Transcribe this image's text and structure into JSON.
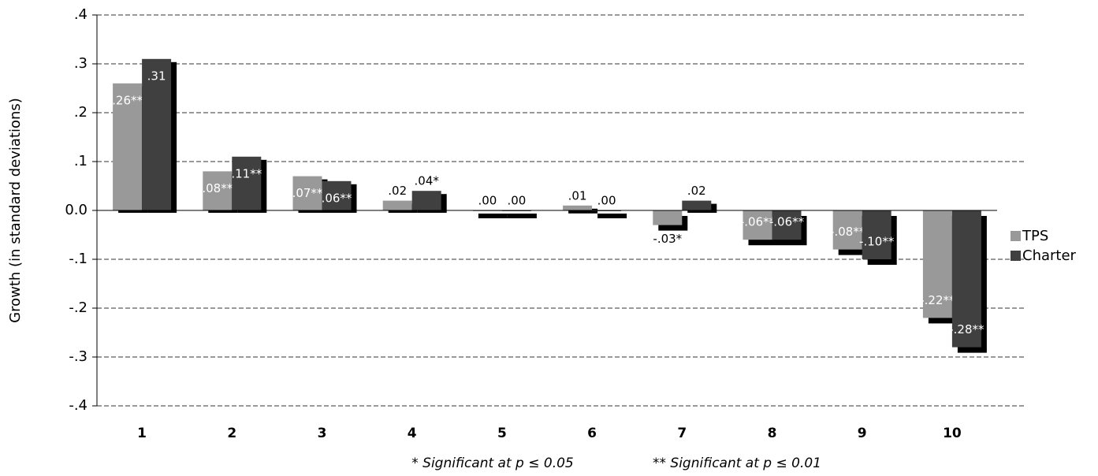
{
  "chart_data": {
    "type": "bar",
    "y_label": "Growth (in standard deviations)",
    "categories": [
      "1",
      "2",
      "3",
      "4",
      "5",
      "6",
      "7",
      "8",
      "9",
      "10"
    ],
    "series": [
      {
        "name": "TPS",
        "color": "#999999",
        "values": [
          0.26,
          0.08,
          0.07,
          0.02,
          0.0,
          0.01,
          -0.03,
          -0.06,
          -0.08,
          -0.22
        ],
        "value_labels": [
          ".26**",
          ".08**",
          ".07**",
          ".02",
          ".00",
          ".01",
          "-.03*",
          "-.06**",
          "-.08**",
          "-.22**"
        ]
      },
      {
        "name": "Charter",
        "color": "#404040",
        "values": [
          0.31,
          0.11,
          0.06,
          0.04,
          0.0,
          0.0,
          0.02,
          -0.06,
          -0.1,
          -0.28
        ],
        "value_labels": [
          ".31",
          ".11**",
          ".06**",
          ".04*",
          ".00",
          ".00",
          ".02",
          "-.06**",
          "-.10**",
          "-.28**"
        ]
      }
    ],
    "ylim": [
      -0.4,
      0.4
    ],
    "yticks": [
      {
        "value": -0.4,
        "label": "-.4"
      },
      {
        "value": -0.3,
        "label": "-.3"
      },
      {
        "value": -0.2,
        "label": "-.2"
      },
      {
        "value": -0.1,
        "label": "-.1"
      },
      {
        "value": 0,
        "label": "0.0"
      },
      {
        "value": 0.1,
        "label": ".1"
      },
      {
        "value": 0.2,
        "label": ".2"
      },
      {
        "value": 0.3,
        "label": ".3"
      },
      {
        "value": 0.4,
        "label": ".4"
      }
    ],
    "grid": true,
    "legend": "right",
    "notes": [
      "* Significant at p ≤ 0.05",
      "** Significant at p ≤ 0.01"
    ]
  }
}
